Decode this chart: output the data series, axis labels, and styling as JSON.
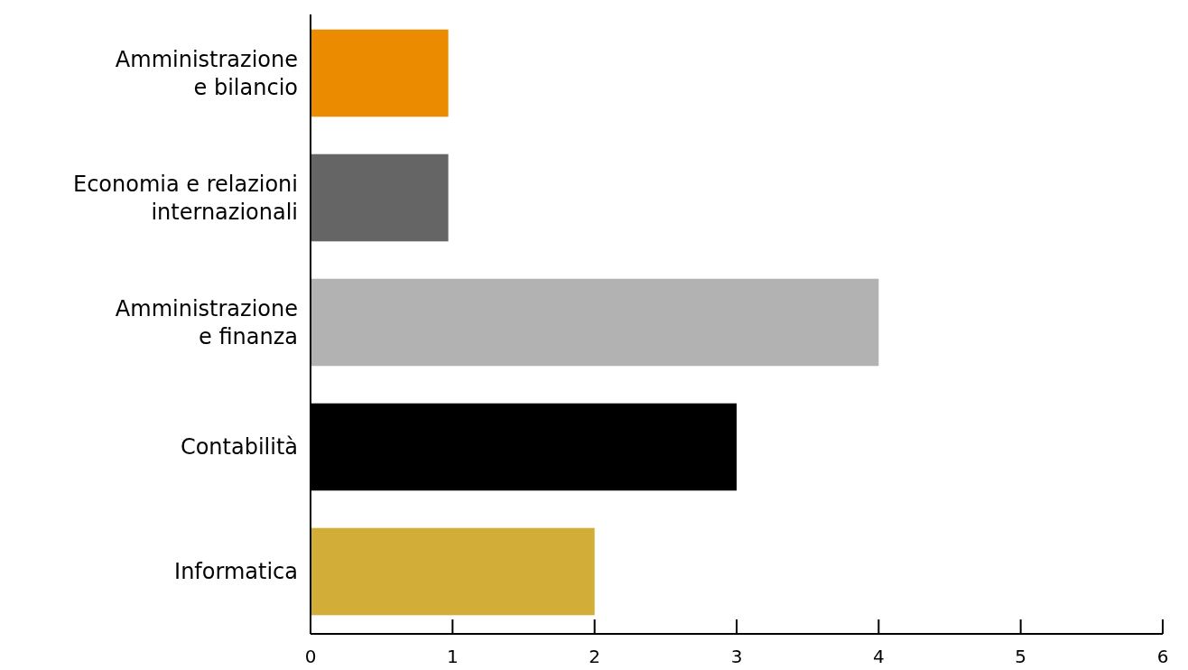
{
  "chart_data": {
    "type": "bar",
    "orientation": "horizontal",
    "categories": [
      "Amministrazione\ne bilancio",
      "Economia e relazioni\ninternazionali",
      "Amministrazione\ne finanza",
      "Contabilità",
      "Informatica"
    ],
    "values": [
      0.97,
      0.97,
      4,
      3,
      2
    ],
    "colors": [
      "#eb8c00",
      "#656565",
      "#b2b2b2",
      "#000000",
      "#d2ad38"
    ],
    "xlim": [
      0,
      6
    ],
    "xticks": [
      0,
      1,
      2,
      3,
      4,
      5,
      6
    ],
    "grid": false
  }
}
